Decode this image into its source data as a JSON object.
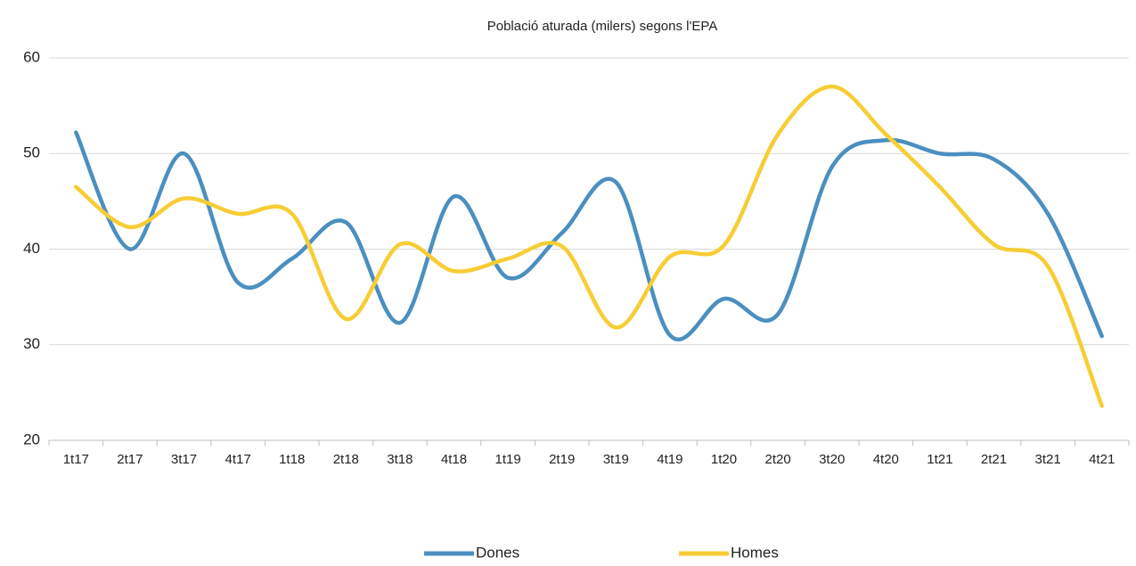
{
  "chart_data": {
    "type": "line",
    "smooth": true,
    "title": "Població aturada (milers) segons l'EPA",
    "categories": [
      "1t17",
      "2t17",
      "3t17",
      "4t17",
      "1t18",
      "2t18",
      "3t18",
      "4t18",
      "1t19",
      "2t19",
      "3t19",
      "4t19",
      "1t20",
      "2t20",
      "3t20",
      "4t20",
      "1t21",
      "2t21",
      "3t21",
      "4t21"
    ],
    "series": [
      {
        "name": "Dones",
        "color": "#4a8fc0",
        "values": [
          52.2,
          40.0,
          50.0,
          36.5,
          39.0,
          42.8,
          32.3,
          45.5,
          37.0,
          41.7,
          47.0,
          31.0,
          34.8,
          33.2,
          48.6,
          51.4,
          50.0,
          49.4,
          43.7,
          30.9
        ]
      },
      {
        "name": "Homes",
        "color": "#f7cd35",
        "values": [
          46.5,
          42.3,
          45.3,
          43.7,
          43.7,
          32.7,
          40.5,
          37.7,
          39.0,
          40.3,
          31.8,
          39.2,
          40.4,
          52.0,
          57.0,
          52.0,
          46.5,
          40.5,
          38.2,
          23.6
        ]
      }
    ],
    "ylim": [
      20,
      60
    ],
    "yticks": [
      20,
      30,
      40,
      50,
      60
    ],
    "grid": true,
    "legend": "bottom"
  }
}
